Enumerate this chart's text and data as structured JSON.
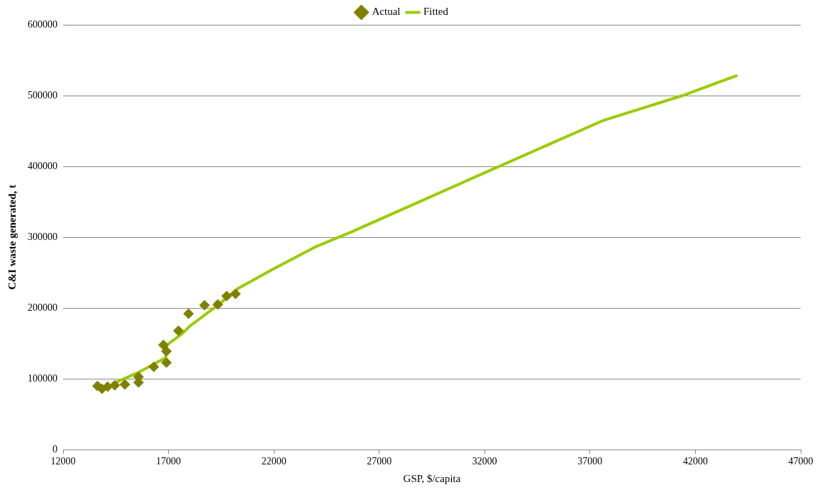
{
  "chart_data": {
    "type": "scatter",
    "xlabel": "GSP, $/capita",
    "ylabel": "C&I waste generated, t",
    "xlim": [
      12000,
      47000
    ],
    "xticks": [
      12000,
      17000,
      22000,
      27000,
      32000,
      37000,
      42000,
      47000
    ],
    "ylim": [
      0,
      600000
    ],
    "yticks": [
      0,
      100000,
      200000,
      300000,
      400000,
      500000,
      600000
    ],
    "grid": "y",
    "legend": "top",
    "series": [
      {
        "name": "Actual",
        "marker": "diamond",
        "color": "#808000",
        "x": [
          13630,
          13840,
          14110,
          14450,
          14930,
          15580,
          15580,
          16300,
          16760,
          16900,
          16900,
          17470,
          17950,
          18710,
          19340,
          19760,
          20180
        ],
        "values": [
          90000,
          86000,
          89000,
          91000,
          92000,
          95000,
          103000,
          117000,
          148000,
          139000,
          123000,
          168000,
          192000,
          204000,
          205000,
          217000,
          220000
        ]
      },
      {
        "name": "Fitted",
        "type": "line",
        "marker": "none",
        "color": "#99cc00",
        "x": [
          14420,
          15570,
          16870,
          16930,
          17660,
          17990,
          19340,
          20270,
          21910,
          24020,
          25720,
          27080,
          32530,
          37640,
          41390,
          43940
        ],
        "values": [
          94000,
          109000,
          130000,
          148000,
          164000,
          174000,
          204000,
          227000,
          254000,
          287000,
          308000,
          326000,
          398000,
          465000,
          500000,
          528000
        ]
      }
    ]
  }
}
